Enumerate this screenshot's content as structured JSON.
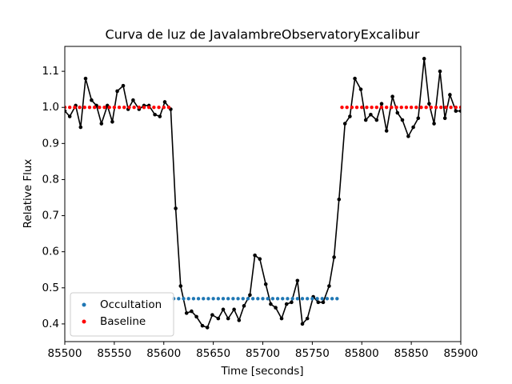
{
  "chart_data": {
    "type": "line",
    "title": "Curva de luz de JavalambreObservatoryExcalibur",
    "xlabel": "Time [seconds]",
    "ylabel": "Relative Flux",
    "xlim": [
      85500,
      85900
    ],
    "ylim": [
      0.351,
      1.169
    ],
    "xticks": [
      85500,
      85550,
      85600,
      85650,
      85700,
      85750,
      85800,
      85850,
      85900
    ],
    "yticks": [
      0.4,
      0.5,
      0.6,
      0.7,
      0.8,
      0.9,
      {
        "value": 1.0,
        "label": "1.0"
      },
      1.1
    ],
    "legend": "lower left",
    "series": [
      {
        "color": "#000000",
        "style": "line-markers",
        "x": [
          85500,
          85505,
          85511,
          85516,
          85521,
          85527,
          85532,
          85537,
          85543,
          85548,
          85553,
          85559,
          85564,
          85569,
          85575,
          85580,
          85585,
          85591,
          85596,
          85601,
          85607,
          85612,
          85617,
          85623,
          85628,
          85633,
          85639,
          85644,
          85649,
          85655,
          85660,
          85665,
          85671,
          85676,
          85681,
          85687,
          85692,
          85697,
          85703,
          85708,
          85713,
          85719,
          85724,
          85729,
          85735,
          85740,
          85745,
          85751,
          85756,
          85761,
          85767,
          85772,
          85777,
          85783,
          85788,
          85793,
          85799,
          85804,
          85809,
          85815,
          85820,
          85825,
          85831,
          85836,
          85841,
          85847,
          85852,
          85857,
          85863,
          85868,
          85873,
          85879,
          85884,
          85889,
          85895,
          85900
        ],
        "values": [
          0.99,
          0.975,
          1.005,
          0.945,
          1.08,
          1.02,
          1.005,
          0.955,
          1.005,
          0.96,
          1.045,
          1.06,
          0.995,
          1.02,
          0.995,
          1.005,
          1.005,
          0.98,
          0.975,
          1.015,
          0.995,
          0.72,
          0.505,
          0.43,
          0.435,
          0.42,
          0.395,
          0.39,
          0.425,
          0.415,
          0.44,
          0.415,
          0.44,
          0.41,
          0.45,
          0.48,
          0.59,
          0.58,
          0.51,
          0.455,
          0.445,
          0.415,
          0.455,
          0.46,
          0.52,
          0.4,
          0.415,
          0.475,
          0.46,
          0.46,
          0.505,
          0.585,
          0.745,
          0.955,
          0.975,
          1.08,
          1.05,
          0.965,
          0.98,
          0.965,
          1.01,
          0.935,
          1.03,
          0.985,
          0.965,
          0.92,
          0.945,
          0.97,
          1.135,
          1.01,
          0.955,
          1.1,
          0.97,
          1.035,
          0.99,
          0.99
        ]
      },
      {
        "name": "Occultation",
        "color": "#1f77b4",
        "style": "markers",
        "x": [
          85610,
          85615,
          85620,
          85625,
          85630,
          85635,
          85640,
          85645,
          85650,
          85655,
          85660,
          85665,
          85670,
          85675,
          85680,
          85685,
          85690,
          85695,
          85700,
          85705,
          85710,
          85715,
          85720,
          85725,
          85730,
          85735,
          85740,
          85745,
          85750,
          85755,
          85760,
          85765,
          85770,
          85775
        ],
        "values": [
          0.47,
          0.47,
          0.47,
          0.47,
          0.47,
          0.47,
          0.47,
          0.47,
          0.47,
          0.47,
          0.47,
          0.47,
          0.47,
          0.47,
          0.47,
          0.47,
          0.47,
          0.47,
          0.47,
          0.47,
          0.47,
          0.47,
          0.47,
          0.47,
          0.47,
          0.47,
          0.47,
          0.47,
          0.47,
          0.47,
          0.47,
          0.47,
          0.47,
          0.47
        ]
      },
      {
        "name": "Baseline",
        "color": "#ff0000",
        "style": "markers",
        "x": [
          85500,
          85505,
          85510,
          85515,
          85520,
          85525,
          85530,
          85535,
          85540,
          85545,
          85550,
          85555,
          85560,
          85565,
          85570,
          85575,
          85580,
          85585,
          85590,
          85595,
          85600,
          85605,
          85780,
          85785,
          85790,
          85795,
          85800,
          85805,
          85810,
          85815,
          85820,
          85825,
          85830,
          85835,
          85840,
          85845,
          85850,
          85855,
          85860,
          85865,
          85870,
          85875,
          85880,
          85885,
          85890,
          85895,
          85900
        ],
        "values": [
          1.0,
          1.0,
          1.0,
          1.0,
          1.0,
          1.0,
          1.0,
          1.0,
          1.0,
          1.0,
          1.0,
          1.0,
          1.0,
          1.0,
          1.0,
          1.0,
          1.0,
          1.0,
          1.0,
          1.0,
          1.0,
          1.0,
          1.0,
          1.0,
          1.0,
          1.0,
          1.0,
          1.0,
          1.0,
          1.0,
          1.0,
          1.0,
          1.0,
          1.0,
          1.0,
          1.0,
          1.0,
          1.0,
          1.0,
          1.0,
          1.0,
          1.0,
          1.0,
          1.0,
          1.0,
          1.0,
          1.0
        ]
      }
    ]
  }
}
